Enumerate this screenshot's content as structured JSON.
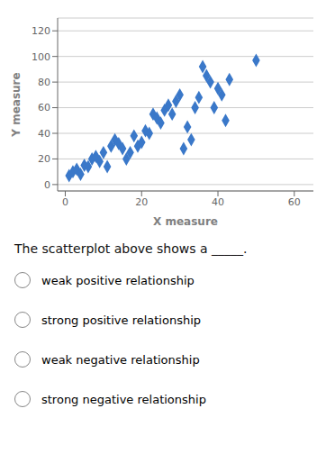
{
  "chart_data": {
    "type": "scatter",
    "x": [
      1,
      2,
      3,
      4,
      5,
      6,
      7,
      8,
      9,
      10,
      11,
      12,
      13,
      14,
      15,
      16,
      17,
      18,
      19,
      20,
      21,
      22,
      23,
      24,
      25,
      26,
      27,
      28,
      29,
      30,
      31,
      32,
      33,
      34,
      35,
      36,
      37,
      38,
      39,
      40,
      41,
      42,
      43,
      50
    ],
    "values": [
      7,
      10,
      12,
      8,
      15,
      14,
      20,
      22,
      18,
      25,
      14,
      30,
      35,
      32,
      28,
      20,
      25,
      38,
      30,
      33,
      42,
      40,
      55,
      52,
      48,
      58,
      62,
      55,
      65,
      70,
      28,
      45,
      35,
      60,
      68,
      92,
      85,
      80,
      60,
      75,
      70,
      50,
      82,
      97
    ],
    "color": "#3a78c9",
    "marker": "diamond",
    "xlabel": "X measure",
    "ylabel": "Y measure",
    "xlim": [
      -2,
      65
    ],
    "ylim": [
      -5,
      130
    ],
    "xticks": [
      0,
      20,
      40,
      60
    ],
    "yticks": [
      0,
      20,
      40,
      60,
      80,
      100,
      120
    ],
    "grid": true,
    "annotations": [
      "The scatterplot above shows a _____.",
      "weak positive relationship",
      "strong positive relationship",
      "weak negative relationship",
      "strong negative relationship"
    ]
  }
}
